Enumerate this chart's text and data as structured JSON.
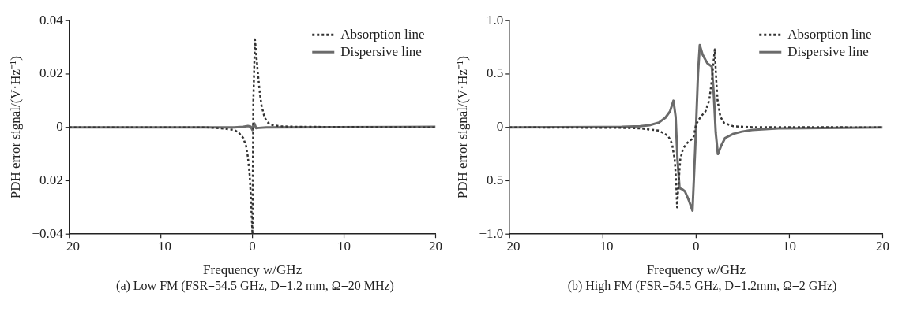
{
  "chart_data": [
    {
      "type": "line",
      "xlabel": "Frequency w/GHz",
      "ylabel": "PDH error signal/(V·Hz⁻¹)",
      "annotations": [
        "(a) Low FM (FSR=54.5 GHz, D=1.2 mm, Ω=20 MHz)"
      ],
      "xlim": [
        -20,
        20
      ],
      "xticks": [
        -20,
        -10,
        0,
        10,
        20
      ],
      "ylim": [
        -0.04,
        0.04
      ],
      "yticks": [
        -0.04,
        -0.02,
        0,
        0.02,
        0.04
      ],
      "legend": "top right",
      "marker": "none",
      "series": [
        {
          "name": "Absorption line",
          "color": "#333333",
          "line_style": "dotted",
          "x": [
            -20,
            -5,
            -3,
            -2,
            -1.5,
            -1,
            -0.7,
            -0.5,
            -0.3,
            -0.15,
            0,
            0.1,
            0.27,
            0.4,
            0.6,
            0.8,
            1,
            1.3,
            1.6,
            2,
            3,
            5,
            20
          ],
          "values": [
            0,
            0,
            -0.0005,
            -0.001,
            -0.002,
            -0.004,
            -0.007,
            -0.011,
            -0.018,
            -0.028,
            -0.04,
            0.01,
            0.033,
            0.028,
            0.02,
            0.013,
            0.008,
            0.004,
            0.002,
            0.001,
            0.0004,
            0.0002,
            0
          ]
        },
        {
          "name": "Dispersive line",
          "color": "#6b6b6b",
          "line_style": "solid",
          "x": [
            -20,
            -2,
            -1,
            -0.5,
            -0.2,
            0,
            0.1,
            0.2,
            0.4,
            0.7,
            1.5,
            20
          ],
          "values": [
            0,
            0,
            0.0002,
            0.0005,
            0.0003,
            -0.001,
            0.001,
            0.0015,
            -0.0003,
            -0.0002,
            0,
            0.0002
          ]
        }
      ]
    },
    {
      "type": "line",
      "xlabel": "Frequency w/GHz",
      "ylabel": "PDH error signal/(V·Hz⁻¹)",
      "annotations": [
        "(b) High FM (FSR=54.5 GHz, D=1.2mm, Ω=2 GHz)"
      ],
      "xlim": [
        -20,
        20
      ],
      "xticks": [
        -20,
        -10,
        0,
        10,
        20
      ],
      "ylim": [
        -1,
        1
      ],
      "yticks": [
        {
          "value": -1,
          "label": "−1.0"
        },
        -0.5,
        0,
        0.5,
        {
          "value": 1,
          "label": "1.0"
        }
      ],
      "legend": "top right",
      "marker": "none",
      "series": [
        {
          "name": "Absorption line",
          "color": "#333333",
          "line_style": "dotted",
          "x": [
            -20,
            -8,
            -6,
            -4,
            -3,
            -2.6,
            -2.3,
            -2.15,
            -2.04,
            -1.9,
            -1.7,
            -1.4,
            -1,
            -0.6,
            -0.3,
            0,
            0.5,
            1,
            1.4,
            1.7,
            1.85,
            2,
            2.15,
            2.3,
            2.6,
            3,
            4,
            6,
            20
          ],
          "values": [
            0,
            -0.005,
            -0.01,
            -0.03,
            -0.08,
            -0.15,
            -0.3,
            -0.5,
            -0.75,
            -0.55,
            -0.3,
            -0.2,
            -0.15,
            -0.12,
            -0.1,
            0.03,
            0.1,
            0.15,
            0.25,
            0.45,
            0.6,
            0.73,
            0.45,
            0.25,
            0.1,
            0.04,
            0.01,
            0.002,
            0
          ]
        },
        {
          "name": "Dispersive line",
          "color": "#6b6b6b",
          "line_style": "solid",
          "x": [
            -20,
            -8,
            -6,
            -5,
            -4,
            -3.3,
            -2.8,
            -2.43,
            -2.2,
            -2,
            -1.78,
            -1.5,
            -1.2,
            -0.8,
            -0.39,
            -0.1,
            0.2,
            0.39,
            0.7,
            1.2,
            1.68,
            1.9,
            2.1,
            2.33,
            2.7,
            3.1,
            4,
            4.9,
            6,
            8.8,
            20
          ],
          "values": [
            0,
            0.005,
            0.01,
            0.02,
            0.045,
            0.09,
            0.15,
            0.25,
            0.1,
            -0.3,
            -0.57,
            -0.58,
            -0.6,
            -0.68,
            -0.78,
            -0.2,
            0.5,
            0.77,
            0.68,
            0.6,
            0.57,
            0.3,
            -0.05,
            -0.25,
            -0.17,
            -0.1,
            -0.06,
            -0.04,
            -0.025,
            -0.01,
            0
          ]
        }
      ]
    }
  ]
}
